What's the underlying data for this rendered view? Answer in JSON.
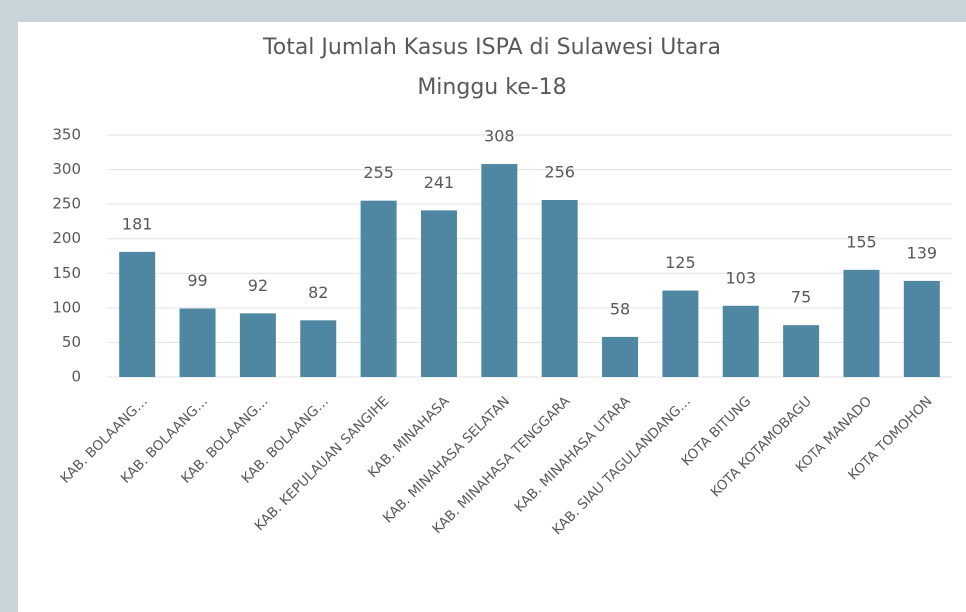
{
  "chart_data": {
    "type": "bar",
    "title": "Total Jumlah Kasus ISPA di Sulawesi Utara",
    "subtitle": "Minggu ke-18",
    "categories": [
      "KAB. BOLAANG…",
      "KAB. BOLAANG…",
      "KAB. BOLAANG…",
      "KAB. BOLAANG…",
      "KAB. KEPULAUAN SANGIHE",
      "KAB. MINAHASA",
      "KAB. MINAHASA SELATAN",
      "KAB. MINAHASA TENGGARA",
      "KAB. MINAHASA UTARA",
      "KAB. SIAU TAGULANDANG…",
      "KOTA BITUNG",
      "KOTA KOTAMOBAGU",
      "KOTA MANADO",
      "KOTA TOMOHON"
    ],
    "values": [
      181,
      99,
      92,
      82,
      255,
      241,
      308,
      256,
      58,
      125,
      103,
      75,
      155,
      139
    ],
    "color": "#4f87a2",
    "ylim": [
      0,
      350
    ],
    "yticks": [
      0,
      50,
      100,
      150,
      200,
      250,
      300,
      350
    ],
    "grid": true
  }
}
